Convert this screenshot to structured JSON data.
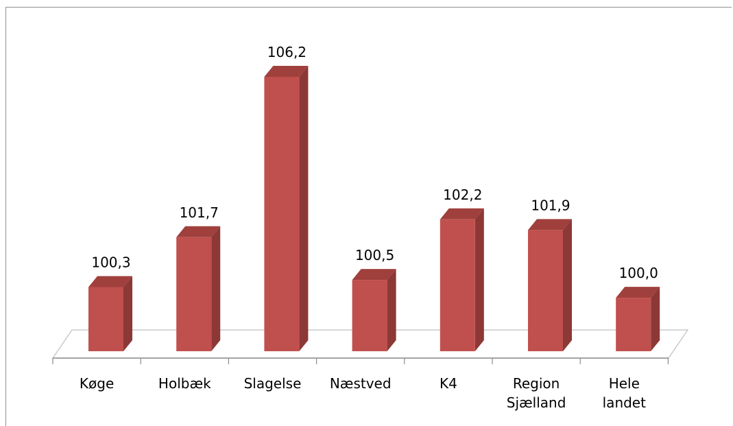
{
  "chart_data": {
    "type": "bar",
    "title": "",
    "xlabel": "",
    "ylabel": "",
    "categories": [
      [
        "Køge"
      ],
      [
        "Holbæk"
      ],
      [
        "Slagelse"
      ],
      [
        "Næstved"
      ],
      [
        "K4"
      ],
      [
        "Region",
        "Sjælland"
      ],
      [
        "Hele",
        "landet"
      ]
    ],
    "values": [
      100.3,
      101.7,
      106.2,
      100.5,
      102.2,
      101.9,
      100.0
    ],
    "value_labels": [
      "100,3",
      "101,7",
      "106,2",
      "100,5",
      "102,2",
      "101,9",
      "100,0"
    ],
    "ylim": [
      98.5,
      107
    ],
    "bar_style": "3d",
    "colors": {
      "front": "#c0504d",
      "side": "#8c3836",
      "top": "#a0403d"
    },
    "grid": false,
    "legend": "none"
  }
}
